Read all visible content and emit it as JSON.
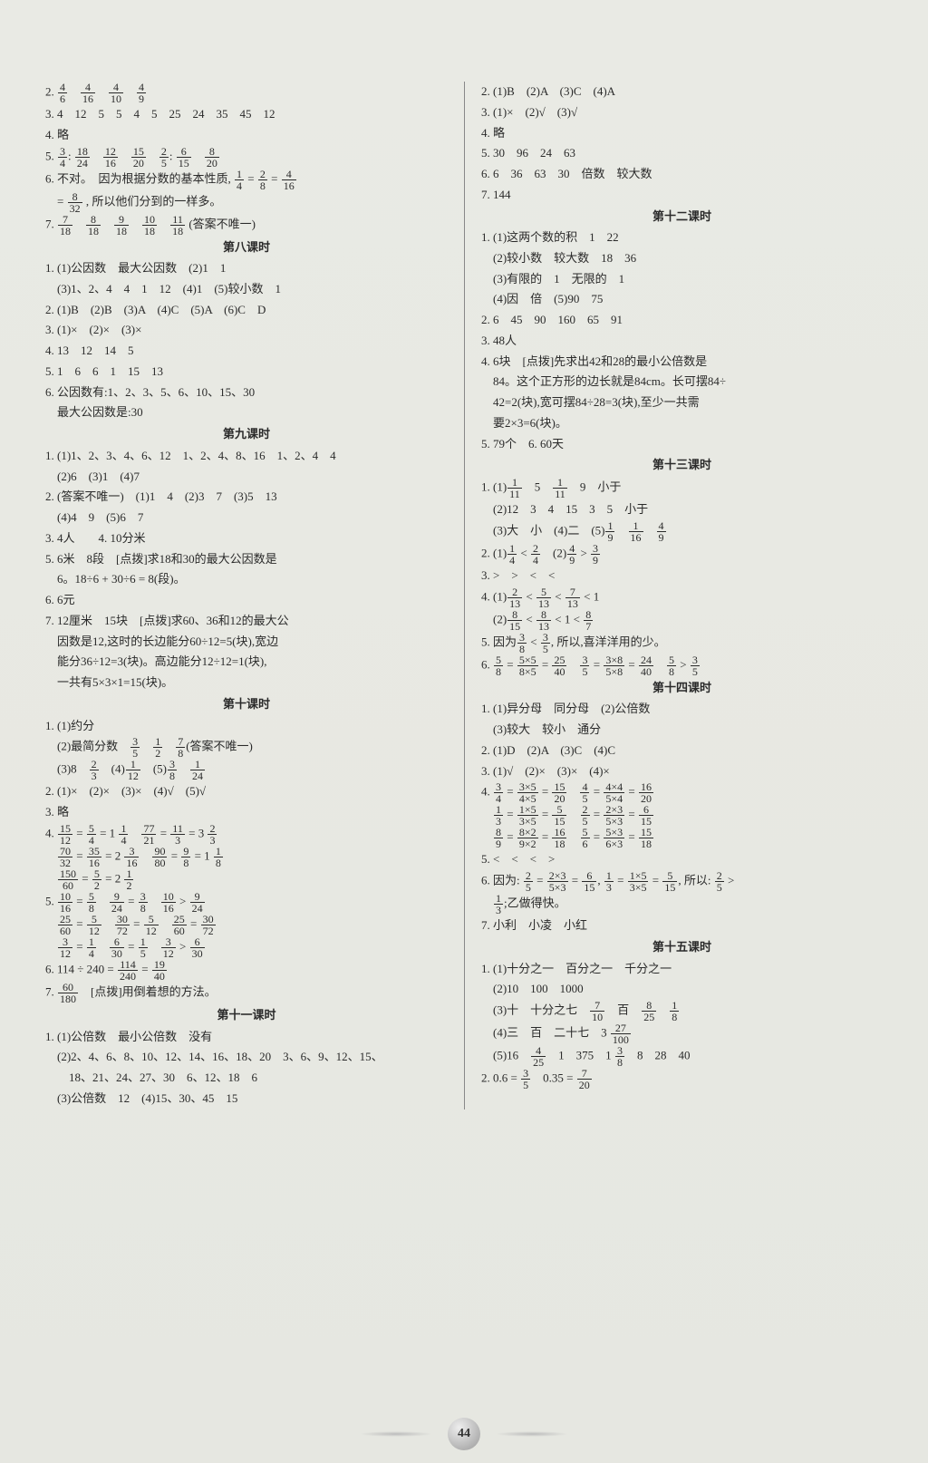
{
  "pageNumber": "44",
  "left": {
    "blocks": [
      {
        "type": "line",
        "key": "l2",
        "raw": "2. {4/6}　{4/16}　{4/10}　{4/9}"
      },
      {
        "type": "line",
        "key": "l3",
        "raw": "3. 4　12　5　5　4　5　25　24　35　45　12"
      },
      {
        "type": "line",
        "key": "l4",
        "raw": "4. 略"
      },
      {
        "type": "line",
        "key": "l5",
        "raw": "5. {3/4}: {18/24}　{12/16}　{15/20}　{2/5}: {6/15}　{8/20}"
      },
      {
        "type": "line",
        "key": "l6a",
        "raw": "6. 不对。　因为根据分数的基本性质, {1/4} = {2/8} = {4/16}"
      },
      {
        "type": "line",
        "key": "l6b",
        "raw": "　= {8/32} , 所以他们分到的一样多。"
      },
      {
        "type": "line",
        "key": "l7",
        "raw": "7. {7/18}　{8/18}　{9/18}　{10/18}　{11/18} (答案不唯一)"
      },
      {
        "type": "title",
        "key": "t8",
        "text": "第八课时"
      },
      {
        "type": "line",
        "key": "l8_1",
        "raw": "1. (1)公因数　最大公因数　(2)1　1"
      },
      {
        "type": "line",
        "key": "l8_1b",
        "raw": "　(3)1、2、4　4　1　12　(4)1　(5)较小数　1"
      },
      {
        "type": "line",
        "key": "l8_2",
        "raw": "2. (1)B　(2)B　(3)A　(4)C　(5)A　(6)C　D"
      },
      {
        "type": "line",
        "key": "l8_3",
        "raw": "3. (1)×　(2)×　(3)×"
      },
      {
        "type": "line",
        "key": "l8_4",
        "raw": "4. 13　12　14　5"
      },
      {
        "type": "line",
        "key": "l8_5",
        "raw": "5. 1　6　6　1　15　13"
      },
      {
        "type": "line",
        "key": "l8_6",
        "raw": "6. 公因数有:1、2、3、5、6、10、15、30"
      },
      {
        "type": "line",
        "key": "l8_6b",
        "raw": "　最大公因数是:30"
      },
      {
        "type": "title",
        "key": "t9",
        "text": "第九课时"
      },
      {
        "type": "line",
        "key": "l9_1",
        "raw": "1. (1)1、2、3、4、6、12　1、2、4、8、16　1、2、4　4"
      },
      {
        "type": "line",
        "key": "l9_1b",
        "raw": "　(2)6　(3)1　(4)7"
      },
      {
        "type": "line",
        "key": "l9_2",
        "raw": "2. (答案不唯一)　(1)1　4　(2)3　7　(3)5　13"
      },
      {
        "type": "line",
        "key": "l9_2b",
        "raw": "　(4)4　9　(5)6　7"
      },
      {
        "type": "line",
        "key": "l9_3",
        "raw": "3. 4人　　4. 10分米"
      },
      {
        "type": "line",
        "key": "l9_5",
        "raw": "5. 6米　8段　[点拨]求18和30的最大公因数是"
      },
      {
        "type": "line",
        "key": "l9_5b",
        "raw": "　6。18÷6 + 30÷6 = 8(段)。"
      },
      {
        "type": "line",
        "key": "l9_6",
        "raw": "6. 6元"
      },
      {
        "type": "line",
        "key": "l9_7",
        "raw": "7. 12厘米　15块　[点拨]求60、36和12的最大公"
      },
      {
        "type": "line",
        "key": "l9_7b",
        "raw": "　因数是12,这时的长边能分60÷12=5(块),宽边"
      },
      {
        "type": "line",
        "key": "l9_7c",
        "raw": "　能分36÷12=3(块)。高边能分12÷12=1(块),"
      },
      {
        "type": "line",
        "key": "l9_7d",
        "raw": "　一共有5×3×1=15(块)。"
      },
      {
        "type": "title",
        "key": "t10",
        "text": "第十课时"
      },
      {
        "type": "line",
        "key": "l10_1",
        "raw": "1. (1)约分"
      },
      {
        "type": "line",
        "key": "l10_1b",
        "raw": "　(2)最简分数　{3/5}　{1/2}　{7/8}(答案不唯一)"
      },
      {
        "type": "line",
        "key": "l10_1c",
        "raw": "　(3)8　{2/3}　(4){1/12}　(5){3/8}　{1/24}"
      },
      {
        "type": "line",
        "key": "l10_2",
        "raw": "2. (1)×　(2)×　(3)×　(4)√　(5)√"
      },
      {
        "type": "line",
        "key": "l10_3",
        "raw": "3. 略"
      },
      {
        "type": "line",
        "key": "l10_4a",
        "raw": "4. {15/12} = {5/4} = 1 {1/4}　{77/21} = {11/3} = 3 {2/3}"
      },
      {
        "type": "line",
        "key": "l10_4b",
        "raw": "　{70/32} = {35/16} = 2 {3/16}　{90/80} = {9/8} = 1 {1/8}"
      },
      {
        "type": "line",
        "key": "l10_4c",
        "raw": "　{150/60} = {5/2} = 2 {1/2}"
      },
      {
        "type": "line",
        "key": "l10_5a",
        "raw": "5. {10/16} = {5/8}　{9/24} = {3/8}　{10/16} > {9/24}"
      },
      {
        "type": "line",
        "key": "l10_5b",
        "raw": "　{25/60} = {5/12}　{30/72} = {5/12}　{25/60} = {30/72}"
      },
      {
        "type": "line",
        "key": "l10_5c",
        "raw": "　{3/12} = {1/4}　{6/30} = {1/5}　{3/12} > {6/30}"
      },
      {
        "type": "line",
        "key": "l10_6",
        "raw": "6. 114 ÷ 240 = {114/240} = {19/40}"
      },
      {
        "type": "line",
        "key": "l10_7",
        "raw": "7. {60/180}　[点拨]用倒着想的方法。"
      },
      {
        "type": "title",
        "key": "t11",
        "text": "第十一课时"
      },
      {
        "type": "line",
        "key": "l11_1",
        "raw": "1. (1)公倍数　最小公倍数　没有"
      },
      {
        "type": "line",
        "key": "l11_1b",
        "raw": "　(2)2、4、6、8、10、12、14、16、18、20　3、6、9、12、15、"
      },
      {
        "type": "line",
        "key": "l11_1c",
        "raw": "　　18、21、24、27、30　6、12、18　6"
      },
      {
        "type": "line",
        "key": "l11_1d",
        "raw": "　(3)公倍数　12　(4)15、30、45　15"
      }
    ]
  },
  "right": {
    "blocks": [
      {
        "type": "line",
        "key": "r2",
        "raw": "2. (1)B　(2)A　(3)C　(4)A"
      },
      {
        "type": "line",
        "key": "r3",
        "raw": "3. (1)×　(2)√　(3)√"
      },
      {
        "type": "line",
        "key": "r4",
        "raw": "4. 略"
      },
      {
        "type": "line",
        "key": "r5",
        "raw": "5. 30　96　24　63"
      },
      {
        "type": "line",
        "key": "r6",
        "raw": "6. 6　36　63　30　倍数　较大数"
      },
      {
        "type": "line",
        "key": "r7",
        "raw": "7. 144"
      },
      {
        "type": "title",
        "key": "t12",
        "text": "第十二课时"
      },
      {
        "type": "line",
        "key": "r12_1",
        "raw": "1. (1)这两个数的积　1　22"
      },
      {
        "type": "line",
        "key": "r12_1b",
        "raw": "　(2)较小数　较大数　18　36"
      },
      {
        "type": "line",
        "key": "r12_1c",
        "raw": "　(3)有限的　1　无限的　1"
      },
      {
        "type": "line",
        "key": "r12_1d",
        "raw": "　(4)因　倍　(5)90　75"
      },
      {
        "type": "line",
        "key": "r12_2",
        "raw": "2. 6　45　90　160　65　91"
      },
      {
        "type": "line",
        "key": "r12_3",
        "raw": "3. 48人"
      },
      {
        "type": "line",
        "key": "r12_4",
        "raw": "4. 6块　[点拨]先求出42和28的最小公倍数是"
      },
      {
        "type": "line",
        "key": "r12_4b",
        "raw": "　84。这个正方形的边长就是84cm。长可摆84÷"
      },
      {
        "type": "line",
        "key": "r12_4c",
        "raw": "　42=2(块),宽可摆84÷28=3(块),至少一共需"
      },
      {
        "type": "line",
        "key": "r12_4d",
        "raw": "　要2×3=6(块)。"
      },
      {
        "type": "line",
        "key": "r12_5",
        "raw": "5. 79个　6. 60天"
      },
      {
        "type": "title",
        "key": "t13",
        "text": "第十三课时"
      },
      {
        "type": "line",
        "key": "r13_1",
        "raw": "1. (1){1/11}　5　{1/11}　9　小于"
      },
      {
        "type": "line",
        "key": "r13_1b",
        "raw": "　(2)12　3　4　15　3　5　小于"
      },
      {
        "type": "line",
        "key": "r13_1c",
        "raw": "　(3)大　小　(4)二　(5){1/9}　{1/16}　{4/9}"
      },
      {
        "type": "line",
        "key": "r13_2",
        "raw": "2. (1){1/4} < {2/4}　(2){4/9} > {3/9}"
      },
      {
        "type": "line",
        "key": "r13_3",
        "raw": "3. >　>　<　<"
      },
      {
        "type": "line",
        "key": "r13_4",
        "raw": "4. (1){2/13} < {5/13} < {7/13} < 1"
      },
      {
        "type": "line",
        "key": "r13_4b",
        "raw": "　(2){8/15} < {8/13} < 1 < {8/7}"
      },
      {
        "type": "line",
        "key": "r13_5",
        "raw": "5. 因为{3/8} < {3/5}, 所以,喜洋洋用的少。"
      },
      {
        "type": "line",
        "key": "r13_6",
        "raw": "6. {5/8} = {5×5/8×5} = {25/40}　{3/5} = {3×8/5×8} = {24/40}　{5/8} > {3/5}"
      },
      {
        "type": "title",
        "key": "t14",
        "text": "第十四课时"
      },
      {
        "type": "line",
        "key": "r14_1",
        "raw": "1. (1)异分母　同分母　(2)公倍数"
      },
      {
        "type": "line",
        "key": "r14_1b",
        "raw": "　(3)较大　较小　通分"
      },
      {
        "type": "line",
        "key": "r14_2",
        "raw": "2. (1)D　(2)A　(3)C　(4)C"
      },
      {
        "type": "line",
        "key": "r14_3",
        "raw": "3. (1)√　(2)×　(3)×　(4)×"
      },
      {
        "type": "line",
        "key": "r14_4a",
        "raw": "4. {3/4} = {3×5/4×5} = {15/20}　{4/5} = {4×4/5×4} = {16/20}"
      },
      {
        "type": "line",
        "key": "r14_4b",
        "raw": "　{1/3} = {1×5/3×5} = {5/15}　{2/5} = {2×3/5×3} = {6/15}"
      },
      {
        "type": "line",
        "key": "r14_4c",
        "raw": "　{8/9} = {8×2/9×2} = {16/18}　{5/6} = {5×3/6×3} = {15/18}"
      },
      {
        "type": "line",
        "key": "r14_5",
        "raw": "5. <　<　<　>"
      },
      {
        "type": "line",
        "key": "r14_6",
        "raw": "6. 因为: {2/5} = {2×3/5×3} = {6/15}, {1/3} = {1×5/3×5} = {5/15}, 所以: {2/5} >"
      },
      {
        "type": "line",
        "key": "r14_6b",
        "raw": "　{1/3};乙做得快。"
      },
      {
        "type": "line",
        "key": "r14_7",
        "raw": "7. 小利　小凌　小红"
      },
      {
        "type": "title",
        "key": "t15",
        "text": "第十五课时"
      },
      {
        "type": "line",
        "key": "r15_1",
        "raw": "1. (1)十分之一　百分之一　千分之一"
      },
      {
        "type": "line",
        "key": "r15_1b",
        "raw": "　(2)10　100　1000"
      },
      {
        "type": "line",
        "key": "r15_1c",
        "raw": "　(3)十　十分之七　{7/10}　百　{8/25}　{1/8}"
      },
      {
        "type": "line",
        "key": "r15_1d",
        "raw": "　(4)三　百　二十七　3 {27/100}"
      },
      {
        "type": "line",
        "key": "r15_1e",
        "raw": "　(5)16　{4/25}　1　375　1 {3/8}　8　28　40"
      },
      {
        "type": "line",
        "key": "r15_2",
        "raw": "2. 0.6 = {3/5}　0.35 = {7/20}"
      }
    ]
  }
}
